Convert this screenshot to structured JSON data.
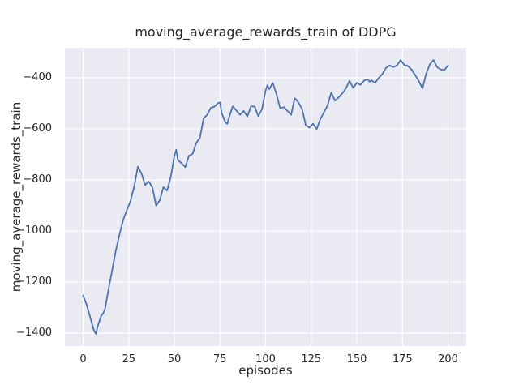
{
  "chart_data": {
    "type": "line",
    "title": "moving_average_rewards_train of DDPG",
    "xlabel": "episodes",
    "ylabel": "moving_average_rewards_train",
    "xlim": [
      -10,
      210
    ],
    "ylim": [
      -1450,
      -283
    ],
    "grid": true,
    "legend_position": "none",
    "xticks": {
      "values": [
        0,
        25,
        50,
        75,
        100,
        125,
        150,
        175,
        200
      ],
      "labels": [
        "0",
        "25",
        "50",
        "75",
        "100",
        "125",
        "150",
        "175",
        "200"
      ]
    },
    "yticks": {
      "values": [
        -400,
        -600,
        -800,
        -1000,
        -1200,
        -1400
      ],
      "labels": [
        "−400",
        "−600",
        "−800",
        "−1000",
        "−1200",
        "−1400"
      ]
    },
    "series": [
      {
        "name": "moving_average_rewards_train",
        "color": "#4c72b0",
        "x": [
          0,
          2,
          4,
          6,
          7,
          8,
          10,
          11,
          12,
          14,
          16,
          18,
          20,
          22,
          24,
          26,
          28,
          30,
          32,
          34,
          36,
          38,
          40,
          42,
          44,
          46,
          48,
          50,
          51,
          52,
          54,
          56,
          58,
          60,
          62,
          64,
          66,
          68,
          70,
          72,
          74,
          75,
          76,
          78,
          79,
          80,
          82,
          84,
          86,
          88,
          90,
          92,
          94,
          96,
          98,
          100,
          101,
          102,
          104,
          106,
          108,
          110,
          112,
          114,
          116,
          118,
          120,
          122,
          124,
          126,
          128,
          130,
          132,
          134,
          136,
          138,
          140,
          142,
          144,
          146,
          148,
          150,
          152,
          154,
          156,
          157,
          158,
          160,
          162,
          164,
          166,
          168,
          170,
          172,
          174,
          176,
          178,
          180,
          182,
          184,
          186,
          188,
          190,
          192,
          194,
          196,
          198,
          200
        ],
        "y": [
          -1252,
          -1290,
          -1340,
          -1390,
          -1402,
          -1372,
          -1330,
          -1322,
          -1305,
          -1225,
          -1150,
          -1075,
          -1012,
          -955,
          -918,
          -882,
          -825,
          -748,
          -775,
          -820,
          -806,
          -830,
          -900,
          -880,
          -828,
          -842,
          -790,
          -706,
          -682,
          -722,
          -735,
          -750,
          -705,
          -698,
          -655,
          -636,
          -560,
          -545,
          -518,
          -513,
          -499,
          -497,
          -540,
          -575,
          -580,
          -555,
          -512,
          -528,
          -545,
          -530,
          -552,
          -512,
          -513,
          -550,
          -524,
          -450,
          -429,
          -445,
          -421,
          -465,
          -520,
          -515,
          -530,
          -545,
          -480,
          -497,
          -522,
          -585,
          -596,
          -580,
          -601,
          -562,
          -535,
          -508,
          -458,
          -490,
          -477,
          -462,
          -442,
          -412,
          -440,
          -420,
          -428,
          -411,
          -406,
          -416,
          -410,
          -420,
          -401,
          -386,
          -362,
          -352,
          -358,
          -352,
          -331,
          -350,
          -354,
          -368,
          -390,
          -413,
          -442,
          -385,
          -348,
          -331,
          -358,
          -368,
          -370,
          -352
        ]
      }
    ],
    "style": {
      "figure_background": "#ffffff",
      "axes_background": "#eaeaf2",
      "grid_color": "#ffffff",
      "text_color": "#262626",
      "line_width": 1.8
    }
  }
}
